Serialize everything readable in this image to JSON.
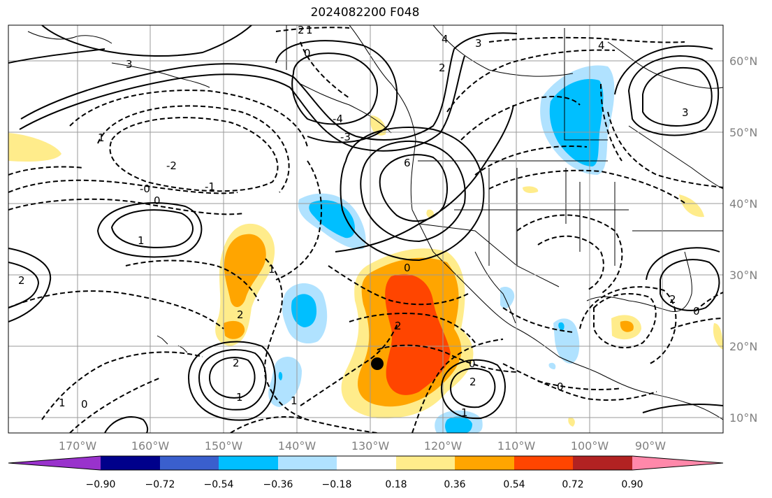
{
  "title": "2024082200 F048",
  "map": {
    "lon_labels": [
      "170°W",
      "160°W",
      "150°W",
      "140°W",
      "130°W",
      "120°W",
      "110°W",
      "100°W",
      "90°W"
    ],
    "lat_labels": [
      "60°N",
      "50°N",
      "40°N",
      "30°N",
      "20°N",
      "10°N"
    ],
    "contour_labels": [
      "2",
      "1",
      "0",
      "4",
      "3",
      "-4",
      "-3",
      "-2",
      "-1",
      "-0",
      "6",
      "2",
      "3",
      "1",
      "0",
      "2",
      "1",
      "1",
      "0",
      "2",
      "2",
      "0",
      "2",
      "1",
      "0",
      "0",
      "1",
      "1",
      "0",
      "2",
      "4",
      "1",
      "3",
      "2"
    ],
    "storm_marker": "storm-center-dot"
  },
  "colorbar": {
    "colors": [
      "#9932cc",
      "#00008b",
      "#3a5fcd",
      "#00bfff",
      "#b0e2ff",
      "#ffffff",
      "#ffec8b",
      "#ffa500",
      "#ff4500",
      "#b22222",
      "#ff88aa"
    ],
    "tick_labels": [
      "−0.90",
      "−0.72",
      "−0.54",
      "−0.36",
      "−0.18",
      "0.18",
      "0.36",
      "0.54",
      "0.72",
      "0.90"
    ]
  }
}
